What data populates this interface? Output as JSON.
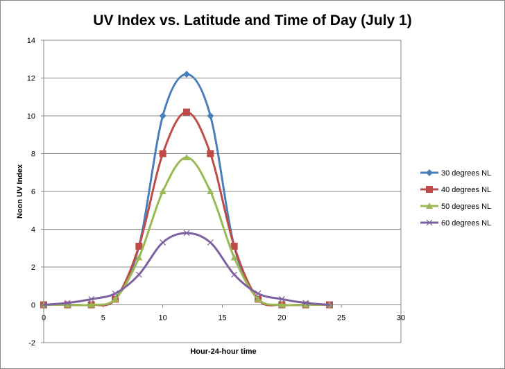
{
  "chart_data": {
    "type": "line",
    "title": "UV Index vs. Latitude and Time of Day (July 1)",
    "xlabel": "Hour-24-hour time",
    "ylabel": "Noon UV Index",
    "xlim": [
      0,
      30
    ],
    "ylim": [
      -2,
      14
    ],
    "xticks": [
      0,
      5,
      10,
      15,
      20,
      25,
      30
    ],
    "yticks": [
      -2,
      0,
      2,
      4,
      6,
      8,
      10,
      12,
      14
    ],
    "grid": "horizontal major",
    "legend": "right",
    "smoothed": true,
    "x": [
      0,
      2,
      4,
      6,
      8,
      10,
      12,
      14,
      16,
      18,
      20,
      22,
      24
    ],
    "series": [
      {
        "name": "30 degrees NL",
        "color": "#4a7ebb",
        "marker": "diamond",
        "values": [
          0,
          0,
          0,
          0.3,
          3.1,
          10,
          12.2,
          10,
          3.1,
          0.3,
          0,
          0,
          0
        ]
      },
      {
        "name": "40 degrees NL",
        "color": "#be4b48",
        "marker": "square",
        "values": [
          0,
          0,
          0,
          0.3,
          3.1,
          8,
          10.2,
          8,
          3.1,
          0.3,
          0,
          0,
          0
        ]
      },
      {
        "name": "50 degrees NL",
        "color": "#98b954",
        "marker": "triangle",
        "values": [
          0,
          0,
          0,
          0.3,
          2.5,
          6,
          7.8,
          6,
          2.5,
          0.3,
          0,
          0,
          0
        ]
      },
      {
        "name": "60 degrees NL",
        "color": "#7d60a0",
        "marker": "x",
        "values": [
          0,
          0.1,
          0.3,
          0.6,
          1.6,
          3.3,
          3.8,
          3.3,
          1.6,
          0.6,
          0.3,
          0.1,
          0
        ]
      }
    ]
  }
}
